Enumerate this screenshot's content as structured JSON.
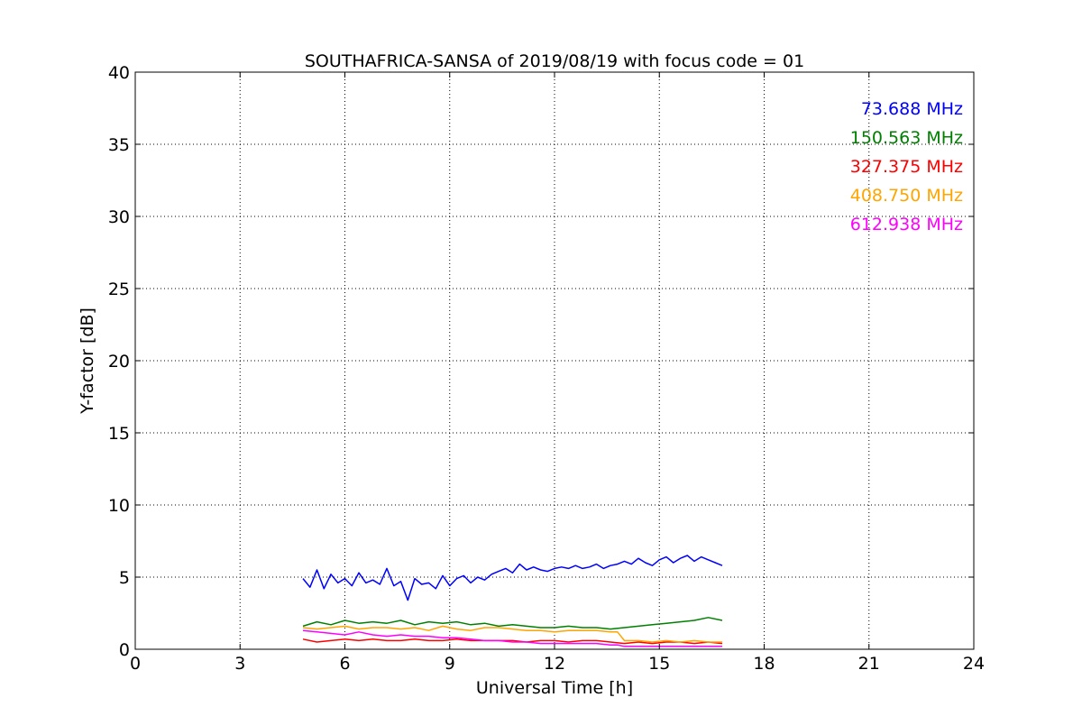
{
  "chart_data": {
    "type": "line",
    "title": "SOUTHAFRICA-SANSA of 2019/08/19 with focus code = 01",
    "xlabel": "Universal Time [h]",
    "ylabel": "Y-factor [dB]",
    "xlim": [
      0,
      24
    ],
    "ylim": [
      0,
      40
    ],
    "xticks": [
      0,
      3,
      6,
      9,
      12,
      15,
      18,
      21,
      24
    ],
    "yticks": [
      0,
      5,
      10,
      15,
      20,
      25,
      30,
      35,
      40
    ],
    "grid": true,
    "legend_position": "top-right",
    "series": [
      {
        "name": "73.688 MHz",
        "color": "#0000ff",
        "x": [
          4.8,
          5.0,
          5.2,
          5.4,
          5.6,
          5.8,
          6.0,
          6.2,
          6.4,
          6.6,
          6.8,
          7.0,
          7.2,
          7.4,
          7.6,
          7.8,
          8.0,
          8.2,
          8.4,
          8.6,
          8.8,
          9.0,
          9.2,
          9.4,
          9.6,
          9.8,
          10.0,
          10.2,
          10.4,
          10.6,
          10.8,
          11.0,
          11.2,
          11.4,
          11.6,
          11.8,
          12.0,
          12.2,
          12.4,
          12.6,
          12.8,
          13.0,
          13.2,
          13.4,
          13.6,
          13.8,
          14.0,
          14.2,
          14.4,
          14.6,
          14.8,
          15.0,
          15.2,
          15.4,
          15.6,
          15.8,
          16.0,
          16.2,
          16.4,
          16.6,
          16.8
        ],
        "y": [
          4.9,
          4.3,
          5.5,
          4.2,
          5.2,
          4.6,
          4.9,
          4.4,
          5.3,
          4.6,
          4.8,
          4.5,
          5.6,
          4.4,
          4.7,
          3.4,
          4.9,
          4.5,
          4.6,
          4.2,
          5.1,
          4.4,
          4.9,
          5.1,
          4.6,
          5.0,
          4.8,
          5.2,
          5.4,
          5.6,
          5.3,
          5.9,
          5.5,
          5.7,
          5.5,
          5.4,
          5.6,
          5.7,
          5.6,
          5.8,
          5.6,
          5.7,
          5.9,
          5.6,
          5.8,
          5.9,
          6.1,
          5.9,
          6.3,
          6.0,
          5.8,
          6.2,
          6.4,
          6.0,
          6.3,
          6.5,
          6.1,
          6.4,
          6.2,
          6.0,
          5.8
        ]
      },
      {
        "name": "150.563 MHz",
        "color": "#008000",
        "x": [
          4.8,
          5.2,
          5.6,
          6.0,
          6.4,
          6.8,
          7.2,
          7.6,
          8.0,
          8.4,
          8.8,
          9.2,
          9.6,
          10.0,
          10.4,
          10.8,
          11.2,
          11.6,
          12.0,
          12.4,
          12.8,
          13.2,
          13.6,
          14.0,
          14.4,
          14.8,
          15.2,
          15.6,
          16.0,
          16.4,
          16.8
        ],
        "y": [
          1.6,
          1.9,
          1.7,
          2.0,
          1.8,
          1.9,
          1.8,
          2.0,
          1.7,
          1.9,
          1.8,
          1.9,
          1.7,
          1.8,
          1.6,
          1.7,
          1.6,
          1.5,
          1.5,
          1.6,
          1.5,
          1.5,
          1.4,
          1.5,
          1.6,
          1.7,
          1.8,
          1.9,
          2.0,
          2.2,
          2.0
        ]
      },
      {
        "name": "327.375 MHz",
        "color": "#ff0000",
        "x": [
          4.8,
          5.2,
          5.6,
          6.0,
          6.4,
          6.8,
          7.2,
          7.6,
          8.0,
          8.4,
          8.8,
          9.2,
          9.6,
          10.0,
          10.4,
          10.8,
          11.2,
          11.6,
          12.0,
          12.4,
          12.8,
          13.2,
          13.6,
          14.0,
          14.4,
          14.8,
          15.2,
          15.6,
          16.0,
          16.4,
          16.8
        ],
        "y": [
          0.7,
          0.5,
          0.6,
          0.7,
          0.6,
          0.7,
          0.6,
          0.6,
          0.7,
          0.6,
          0.6,
          0.7,
          0.6,
          0.6,
          0.6,
          0.6,
          0.5,
          0.6,
          0.6,
          0.5,
          0.6,
          0.6,
          0.5,
          0.4,
          0.5,
          0.4,
          0.5,
          0.5,
          0.4,
          0.5,
          0.4
        ]
      },
      {
        "name": "408.750 MHz",
        "color": "#ffa500",
        "x": [
          4.8,
          5.2,
          5.6,
          6.0,
          6.4,
          6.8,
          7.2,
          7.6,
          8.0,
          8.4,
          8.8,
          9.2,
          9.6,
          10.0,
          10.4,
          10.8,
          11.2,
          11.6,
          12.0,
          12.4,
          12.8,
          13.2,
          13.6,
          13.8,
          14.0,
          14.4,
          14.8,
          15.2,
          15.6,
          16.0,
          16.4,
          16.8
        ],
        "y": [
          1.5,
          1.4,
          1.5,
          1.6,
          1.4,
          1.5,
          1.5,
          1.4,
          1.5,
          1.3,
          1.6,
          1.4,
          1.3,
          1.5,
          1.5,
          1.4,
          1.3,
          1.3,
          1.2,
          1.3,
          1.3,
          1.3,
          1.2,
          1.2,
          0.6,
          0.6,
          0.5,
          0.6,
          0.5,
          0.6,
          0.5,
          0.5
        ]
      },
      {
        "name": "612.938 MHz",
        "color": "#ff00ff",
        "x": [
          4.8,
          5.2,
          5.6,
          6.0,
          6.4,
          6.8,
          7.2,
          7.6,
          8.0,
          8.4,
          8.8,
          9.2,
          9.6,
          10.0,
          10.4,
          10.8,
          11.2,
          11.6,
          12.0,
          12.4,
          12.8,
          13.2,
          13.6,
          13.8,
          14.0,
          14.4,
          14.8,
          15.2,
          15.6,
          16.0,
          16.4,
          16.8
        ],
        "y": [
          1.3,
          1.2,
          1.1,
          1.0,
          1.2,
          1.0,
          0.9,
          1.0,
          0.9,
          0.9,
          0.8,
          0.8,
          0.7,
          0.6,
          0.6,
          0.5,
          0.5,
          0.4,
          0.4,
          0.4,
          0.4,
          0.4,
          0.3,
          0.3,
          0.2,
          0.2,
          0.2,
          0.2,
          0.2,
          0.2,
          0.2,
          0.2
        ]
      }
    ]
  }
}
